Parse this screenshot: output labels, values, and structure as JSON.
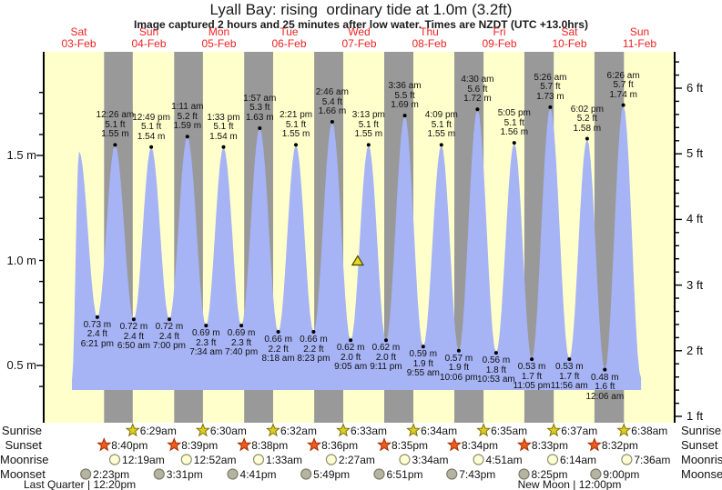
{
  "title": "Lyall Bay: rising  ordinary tide at 1.0m (3.2ft)",
  "subtitle": "Image captured 2 hours and 25 minutes after low water. Times are NZDT (UTC +13.0hrs)",
  "days": [
    {
      "name": "Sat",
      "date": "03-Feb"
    },
    {
      "name": "Sun",
      "date": "04-Feb"
    },
    {
      "name": "Mon",
      "date": "05-Feb"
    },
    {
      "name": "Tue",
      "date": "06-Feb"
    },
    {
      "name": "Wed",
      "date": "07-Feb"
    },
    {
      "name": "Thu",
      "date": "08-Feb"
    },
    {
      "name": "Fri",
      "date": "09-Feb"
    },
    {
      "name": "Sat",
      "date": "10-Feb"
    },
    {
      "name": "Sun",
      "date": "11-Feb"
    }
  ],
  "chart_data": {
    "type": "area",
    "title": "Lyall Bay: rising  ordinary tide at 1.0m (3.2ft)",
    "x_axis": {
      "start_day": "Sat 03-Feb",
      "end_day": "Sun 11-Feb",
      "days": 9
    },
    "y_axis": {
      "left_unit": "m",
      "left_tick_labels": [
        "0.5 m",
        "1.0 m",
        "1.5 m"
      ],
      "left_tick_values": [
        0.5,
        1.0,
        1.5
      ],
      "right_unit": "ft",
      "right_tick_labels": [
        "1 ft",
        "2 ft",
        "3 ft",
        "4 ft",
        "5 ft",
        "6 ft"
      ],
      "right_tick_values": [
        1,
        2,
        3,
        4,
        5,
        6
      ],
      "ylim_m": [
        0.38,
        1.95
      ]
    },
    "extremes": [
      {
        "kind": "low",
        "day": 0,
        "time": "9:40 am",
        "m": 0.43,
        "ft": "1.4",
        "labeled": false
      },
      {
        "kind": "high",
        "day": 0,
        "time": "12:05 pm",
        "m": 1.52,
        "ft": "5.0",
        "labeled": false
      },
      {
        "kind": "low",
        "day": 0,
        "time": "6:21 pm",
        "m": 0.73,
        "ft": "2.4",
        "labeled": true
      },
      {
        "kind": "high",
        "day": 1,
        "time": "12:26 am",
        "m": 1.55,
        "ft": "5.1",
        "labeled": true
      },
      {
        "kind": "low",
        "day": 1,
        "time": "6:50 am",
        "m": 0.72,
        "ft": "2.4",
        "labeled": true
      },
      {
        "kind": "high",
        "day": 1,
        "time": "12:49 pm",
        "m": 1.54,
        "ft": "5.1",
        "labeled": true
      },
      {
        "kind": "low",
        "day": 1,
        "time": "7:00 pm",
        "m": 0.72,
        "ft": "2.4",
        "labeled": true
      },
      {
        "kind": "high",
        "day": 2,
        "time": "1:11 am",
        "m": 1.59,
        "ft": "5.2",
        "labeled": true
      },
      {
        "kind": "low",
        "day": 2,
        "time": "7:34 am",
        "m": 0.69,
        "ft": "2.3",
        "labeled": true
      },
      {
        "kind": "high",
        "day": 2,
        "time": "1:33 pm",
        "m": 1.54,
        "ft": "5.1",
        "labeled": true
      },
      {
        "kind": "low",
        "day": 2,
        "time": "7:40 pm",
        "m": 0.69,
        "ft": "2.3",
        "labeled": true
      },
      {
        "kind": "high",
        "day": 3,
        "time": "1:57 am",
        "m": 1.63,
        "ft": "5.3",
        "labeled": true
      },
      {
        "kind": "low",
        "day": 3,
        "time": "8:18 am",
        "m": 0.66,
        "ft": "2.2",
        "labeled": true
      },
      {
        "kind": "high",
        "day": 3,
        "time": "2:21 pm",
        "m": 1.55,
        "ft": "5.1",
        "labeled": true
      },
      {
        "kind": "low",
        "day": 3,
        "time": "8:23 pm",
        "m": 0.66,
        "ft": "2.2",
        "labeled": true
      },
      {
        "kind": "high",
        "day": 4,
        "time": "2:46 am",
        "m": 1.66,
        "ft": "5.4",
        "labeled": true
      },
      {
        "kind": "low",
        "day": 4,
        "time": "9:05 am",
        "m": 0.62,
        "ft": "2.0",
        "labeled": true
      },
      {
        "kind": "high",
        "day": 4,
        "time": "3:13 pm",
        "m": 1.55,
        "ft": "5.1",
        "labeled": true
      },
      {
        "kind": "low",
        "day": 4,
        "time": "9:11 pm",
        "m": 0.62,
        "ft": "2.0",
        "labeled": true
      },
      {
        "kind": "high",
        "day": 5,
        "time": "3:36 am",
        "m": 1.69,
        "ft": "5.5",
        "labeled": true
      },
      {
        "kind": "low",
        "day": 5,
        "time": "9:55 am",
        "m": 0.59,
        "ft": "1.9",
        "labeled": true
      },
      {
        "kind": "high",
        "day": 5,
        "time": "4:09 pm",
        "m": 1.55,
        "ft": "5.1",
        "labeled": true
      },
      {
        "kind": "low",
        "day": 5,
        "time": "10:06 pm",
        "m": 0.57,
        "ft": "1.9",
        "labeled": true
      },
      {
        "kind": "high",
        "day": 6,
        "time": "4:30 am",
        "m": 1.72,
        "ft": "5.6",
        "labeled": true
      },
      {
        "kind": "low",
        "day": 6,
        "time": "10:53 am",
        "m": 0.56,
        "ft": "1.8",
        "labeled": true
      },
      {
        "kind": "high",
        "day": 6,
        "time": "5:05 pm",
        "m": 1.56,
        "ft": "5.1",
        "labeled": true
      },
      {
        "kind": "low",
        "day": 6,
        "time": "11:05 pm",
        "m": 0.53,
        "ft": "1.7",
        "labeled": true
      },
      {
        "kind": "high",
        "day": 7,
        "time": "5:26 am",
        "m": 1.73,
        "ft": "5.7",
        "labeled": true
      },
      {
        "kind": "low",
        "day": 7,
        "time": "11:56 am",
        "m": 0.53,
        "ft": "1.7",
        "labeled": true
      },
      {
        "kind": "high",
        "day": 7,
        "time": "6:02 pm",
        "m": 1.58,
        "ft": "5.2",
        "labeled": true
      },
      {
        "kind": "low",
        "day": 8,
        "time": "12:06 am",
        "m": 0.48,
        "ft": "1.6",
        "labeled": true
      },
      {
        "kind": "high",
        "day": 8,
        "time": "6:26 am",
        "m": 1.74,
        "ft": "5.7",
        "labeled": true
      },
      {
        "kind": "low",
        "day": 8,
        "time": "12:30 pm",
        "m": 0.44,
        "ft": "1.4",
        "labeled": false
      }
    ],
    "current_marker": {
      "symbol": "triangle",
      "day": 4,
      "time": "11:30 am",
      "m": 1.0
    }
  },
  "astronomy": {
    "rows": [
      {
        "label": "Sunrise",
        "icon": "sunrise-star",
        "events": [
          {
            "day": 1,
            "time": "6:29am"
          },
          {
            "day": 2,
            "time": "6:30am"
          },
          {
            "day": 3,
            "time": "6:32am"
          },
          {
            "day": 4,
            "time": "6:33am"
          },
          {
            "day": 5,
            "time": "6:34am"
          },
          {
            "day": 6,
            "time": "6:35am"
          },
          {
            "day": 7,
            "time": "6:37am"
          },
          {
            "day": 8,
            "time": "6:38am"
          }
        ]
      },
      {
        "label": "Sunset",
        "icon": "sunset-star",
        "events": [
          {
            "day": 0,
            "time": "8:40pm"
          },
          {
            "day": 1,
            "time": "8:39pm"
          },
          {
            "day": 2,
            "time": "8:38pm"
          },
          {
            "day": 3,
            "time": "8:36pm"
          },
          {
            "day": 4,
            "time": "8:35pm"
          },
          {
            "day": 5,
            "time": "8:34pm"
          },
          {
            "day": 6,
            "time": "8:33pm"
          },
          {
            "day": 7,
            "time": "8:32pm"
          }
        ]
      },
      {
        "label": "Moonrise",
        "icon": "moonrise-circle",
        "events": [
          {
            "day": 1,
            "time": "12:19am"
          },
          {
            "day": 2,
            "time": "12:52am"
          },
          {
            "day": 3,
            "time": "1:33am"
          },
          {
            "day": 4,
            "time": "2:27am"
          },
          {
            "day": 5,
            "time": "3:34am"
          },
          {
            "day": 6,
            "time": "4:51am"
          },
          {
            "day": 7,
            "time": "6:14am"
          },
          {
            "day": 8,
            "time": "7:36am"
          }
        ]
      },
      {
        "label": "Moonset",
        "icon": "moonset-circle",
        "events": [
          {
            "day": 0,
            "time": "2:23pm"
          },
          {
            "day": 1,
            "time": "3:31pm"
          },
          {
            "day": 2,
            "time": "4:41pm"
          },
          {
            "day": 3,
            "time": "5:49pm"
          },
          {
            "day": 4,
            "time": "6:51pm"
          },
          {
            "day": 5,
            "time": "7:43pm"
          },
          {
            "day": 6,
            "time": "8:25pm"
          },
          {
            "day": 7,
            "time": "9:00pm"
          }
        ]
      }
    ],
    "phases": [
      {
        "label": "Last Quarter | 12:20pm",
        "day": 0,
        "time": "12:20pm"
      },
      {
        "label": "New Moon | 12:00pm",
        "day": 7,
        "time": "12:00pm"
      }
    ]
  },
  "colors": {
    "day_band": "#ffffcc",
    "night_band": "#999999",
    "tide_area": "#a6b3f4",
    "day_label_red": "#ee2222",
    "marker_yellow": "#e8d820",
    "sunrise_star": "#decd25",
    "sunset_star": "#ef5c1e",
    "moonrise_fill": "#ffffd6",
    "moonset_fill": "#b4b4a0"
  }
}
